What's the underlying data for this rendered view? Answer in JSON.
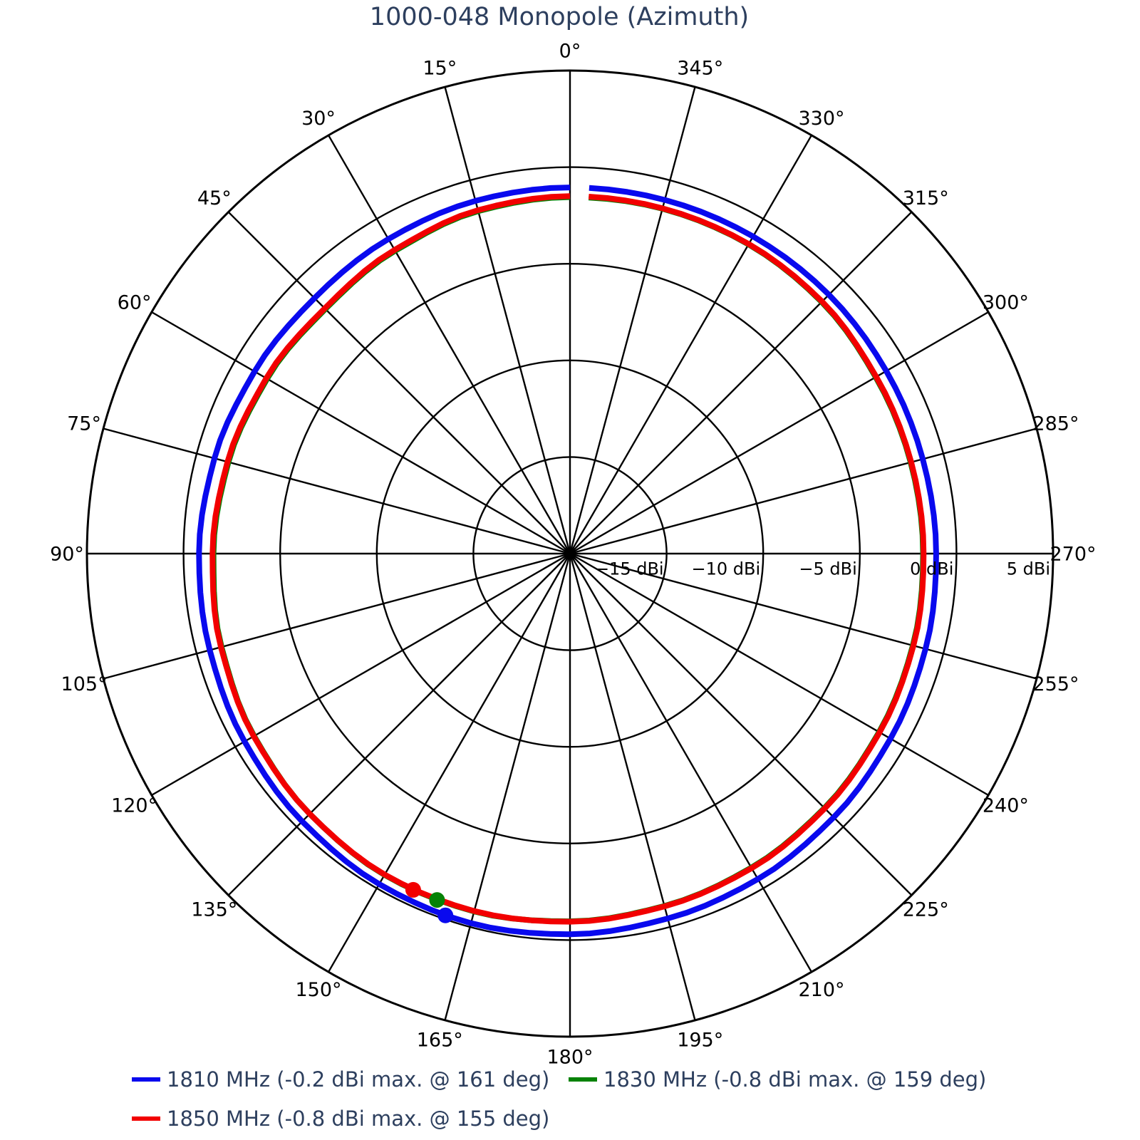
{
  "title": "1000-048 Monopole (Azimuth)",
  "colors": {
    "text": "#2d3f5e",
    "grid": "#000000",
    "background": "#ffffff"
  },
  "chart_data": {
    "type": "line",
    "subtype": "polar-radiation-pattern",
    "title": "1000-048 Monopole (Azimuth)",
    "theta_axis": {
      "unit": "deg",
      "zero_location": "top",
      "direction": "counterclockwise",
      "tick_step_deg": 15,
      "tick_labels": [
        "0°",
        "15°",
        "30°",
        "45°",
        "60°",
        "75°",
        "90°",
        "105°",
        "120°",
        "135°",
        "150°",
        "165°",
        "180°",
        "195°",
        "210°",
        "225°",
        "240°",
        "255°",
        "270°",
        "285°",
        "300°",
        "315°",
        "330°",
        "345°"
      ]
    },
    "r_axis": {
      "unit": "dBi",
      "min": -20,
      "max": 5,
      "ring_step_db": 5,
      "tick_values": [
        -15,
        -10,
        -5,
        0,
        5
      ],
      "tick_labels": [
        "−15 dBi",
        "−10 dBi",
        "−5 dBi",
        "0 dBi",
        "5 dBi"
      ]
    },
    "grid": true,
    "plot_gap_deg": {
      "from": 357,
      "to": 360
    },
    "sample_step_deg": 15,
    "sample_angles_deg": [
      0,
      15,
      30,
      45,
      60,
      75,
      90,
      105,
      120,
      135,
      150,
      165,
      180,
      195,
      210,
      225,
      240,
      255,
      270,
      285,
      300,
      315,
      330,
      345
    ],
    "series": [
      {
        "name": "1810 MHz",
        "legend": "1810 MHz (-0.2 dBi max. @ 161 deg)",
        "color": "#0909ee",
        "max": {
          "dbi": -0.2,
          "deg": 161
        },
        "gain_dbi": [
          -1.05,
          -1.1,
          -1.2,
          -1.3,
          -1.15,
          -0.95,
          -0.8,
          -0.7,
          -0.55,
          -0.4,
          -0.25,
          -0.2,
          -0.3,
          -0.45,
          -0.55,
          -0.7,
          -0.85,
          -0.95,
          -1.05,
          -1.1,
          -1.1,
          -1.05,
          -1.05,
          -1.05
        ]
      },
      {
        "name": "1830 MHz",
        "legend": "1830 MHz (-0.8 dBi max. @ 159 deg)",
        "color": "#068206",
        "max": {
          "dbi": -0.8,
          "deg": 159
        },
        "gain_dbi": [
          -1.55,
          -1.65,
          -1.9,
          -2.1,
          -1.9,
          -1.7,
          -1.55,
          -1.33,
          -1.12,
          -0.95,
          -0.8,
          -0.83,
          -0.97,
          -1.12,
          -1.23,
          -1.38,
          -1.53,
          -1.63,
          -1.73,
          -1.75,
          -1.73,
          -1.58,
          -1.52,
          -1.52
        ]
      },
      {
        "name": "1850 MHz",
        "legend": "1850 MHz (-0.8 dBi max. @ 155 deg)",
        "color": "#f20000",
        "max": {
          "dbi": -0.8,
          "deg": 155
        },
        "gain_dbi": [
          -1.5,
          -1.6,
          -1.85,
          -2.05,
          -1.85,
          -1.65,
          -1.5,
          -1.3,
          -1.1,
          -0.95,
          -0.82,
          -0.85,
          -0.95,
          -1.1,
          -1.2,
          -1.35,
          -1.5,
          -1.6,
          -1.7,
          -1.72,
          -1.7,
          -1.55,
          -1.5,
          -1.5
        ]
      }
    ],
    "legend_position": "bottom",
    "line_draw_order": [
      1,
      2,
      0
    ],
    "marker_draw_order": [
      2,
      1,
      0
    ]
  }
}
